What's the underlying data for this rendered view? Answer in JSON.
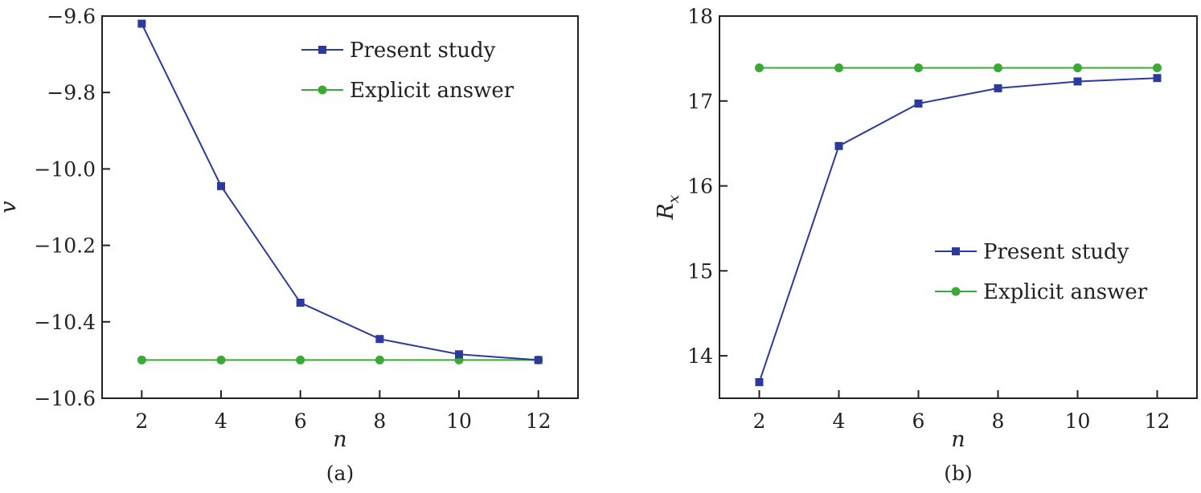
{
  "colors": {
    "present": "#2b3a9c",
    "explicit": "#3aaa35",
    "axis": "#222222"
  },
  "chart_data": [
    {
      "type": "line",
      "caption": "(a)",
      "xlabel": "n",
      "ylabel": "v",
      "xlim": [
        1,
        13
      ],
      "ylim": [
        -10.6,
        -9.6
      ],
      "xticks": [
        2,
        4,
        6,
        8,
        10,
        12
      ],
      "yticks": [
        -9.6,
        -9.8,
        -10.0,
        -10.2,
        -10.4,
        -10.6
      ],
      "ytick_labels": [
        "−9.6",
        "−9.8",
        "−10.0",
        "−10.2",
        "−10.4",
        "−10.6"
      ],
      "legend_position": "top-right",
      "grid": false,
      "x": [
        2,
        4,
        6,
        8,
        10,
        12
      ],
      "series": [
        {
          "name": "Present study",
          "marker": "square",
          "values": [
            -9.62,
            -10.045,
            -10.35,
            -10.445,
            -10.485,
            -10.5
          ]
        },
        {
          "name": "Explicit answer",
          "marker": "circle",
          "values": [
            -10.5,
            -10.5,
            -10.5,
            -10.5,
            -10.5,
            -10.5
          ]
        }
      ]
    },
    {
      "type": "line",
      "caption": "(b)",
      "xlabel": "n",
      "ylabel": "R_x",
      "xlim": [
        1,
        13
      ],
      "ylim": [
        13.5,
        18
      ],
      "xticks": [
        2,
        4,
        6,
        8,
        10,
        12
      ],
      "yticks": [
        14,
        15,
        16,
        17,
        18
      ],
      "ytick_labels": [
        "14",
        "15",
        "16",
        "17",
        "18"
      ],
      "legend_position": "center-right",
      "grid": false,
      "x": [
        2,
        4,
        6,
        8,
        10,
        12
      ],
      "series": [
        {
          "name": "Present study",
          "marker": "square",
          "values": [
            13.69,
            16.47,
            16.97,
            17.15,
            17.23,
            17.27
          ]
        },
        {
          "name": "Explicit answer",
          "marker": "circle",
          "values": [
            17.39,
            17.39,
            17.39,
            17.39,
            17.39,
            17.39
          ]
        }
      ]
    }
  ]
}
